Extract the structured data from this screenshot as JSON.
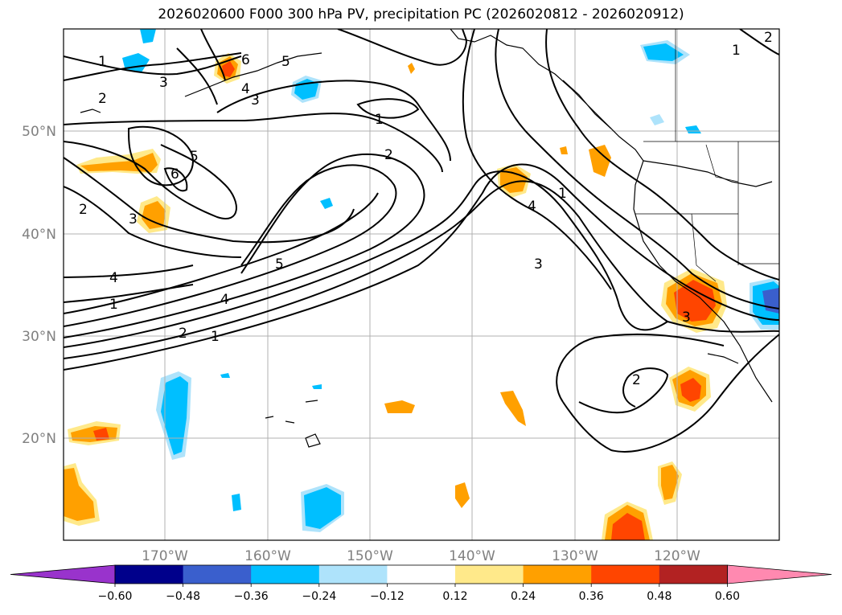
{
  "title": "2026020600 F000 300 hPa PV, precipitation PC (2026020812 - 2026020912)",
  "lat_labels": [
    "50°N",
    "40°N",
    "30°N",
    "20°N"
  ],
  "lon_labels": [
    "170°W",
    "160°W",
    "150°W",
    "140°W",
    "130°W",
    "120°W"
  ],
  "colorbar": {
    "ticks": [
      "−0.60",
      "−0.48",
      "−0.36",
      "−0.24",
      "−0.12",
      "0.12",
      "0.24",
      "0.36",
      "0.48",
      "0.60"
    ],
    "colors": [
      "#9933cc",
      "#00008b",
      "#3a5fcd",
      "#00bfff",
      "#aee3fb",
      "#ffffff",
      "#ffe98a",
      "#ffa000",
      "#ff4500",
      "#b22222",
      "#ff89b0"
    ]
  },
  "contour_labels": [
    "1",
    "2",
    "3",
    "5",
    "6",
    "3",
    "4",
    "2",
    "1",
    "1",
    "2",
    "6",
    "5",
    "2",
    "3",
    "1",
    "4",
    "5",
    "4",
    "2",
    "1",
    "4",
    "3",
    "2",
    "3",
    "1"
  ]
}
